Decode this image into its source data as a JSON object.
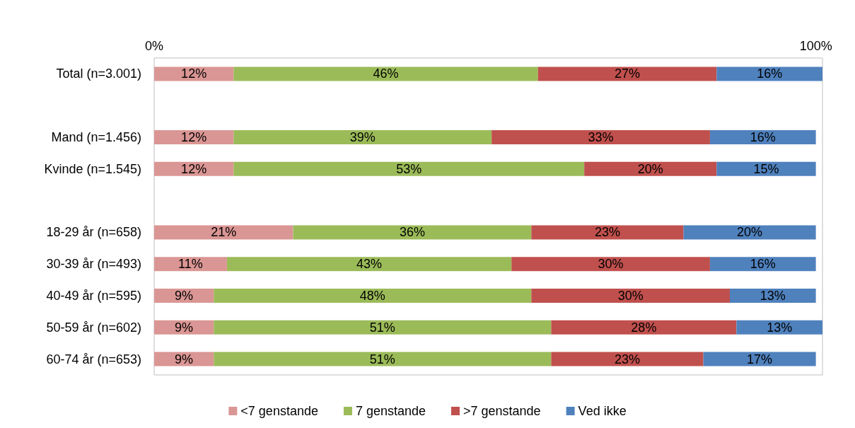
{
  "chart_data": {
    "type": "bar",
    "orientation": "horizontal",
    "stacked": true,
    "legend": "bottom",
    "grid": false,
    "categories": [
      "Total (n=3.001)",
      null,
      "Mand (n=1.456)",
      "Kvinde (n=1.545)",
      null,
      "18-29 år (n=658)",
      "30-39 år (n=493)",
      "40-49 år (n=595)",
      "50-59 år (n=602)",
      "60-74 år (n=653)"
    ],
    "xlim": [
      0,
      101
    ],
    "xticks": [
      {
        "value": 0,
        "label": "0%"
      },
      {
        "value": 100,
        "label": "100%"
      }
    ],
    "series": [
      {
        "name": "<7 genstande",
        "color": "#da9694",
        "values": [
          12,
          null,
          12,
          12,
          null,
          21,
          11,
          9,
          9,
          9
        ],
        "value_labels": [
          "12%",
          null,
          "12%",
          "12%",
          null,
          "21%",
          "11%",
          "9%",
          "9%",
          "9%"
        ]
      },
      {
        "name": "7 genstande",
        "color": "#9bbb59",
        "values": [
          46,
          null,
          39,
          53,
          null,
          36,
          43,
          48,
          51,
          51
        ],
        "value_labels": [
          "46%",
          null,
          "39%",
          "53%",
          null,
          "36%",
          "43%",
          "48%",
          "51%",
          "51%"
        ]
      },
      {
        "name": ">7 genstande",
        "color": "#c0504d",
        "values": [
          27,
          null,
          33,
          20,
          null,
          23,
          30,
          30,
          28,
          23
        ],
        "value_labels": [
          "27%",
          null,
          "33%",
          "20%",
          null,
          "23%",
          "30%",
          "30%",
          "28%",
          "23%"
        ]
      },
      {
        "name": "Ved ikke",
        "color": "#4f81bd",
        "values": [
          16,
          null,
          16,
          15,
          null,
          20,
          16,
          13,
          13,
          17
        ],
        "value_labels": [
          "16%",
          null,
          "16%",
          "15%",
          null,
          "20%",
          "16%",
          "13%",
          "13%",
          "17%"
        ]
      }
    ]
  }
}
